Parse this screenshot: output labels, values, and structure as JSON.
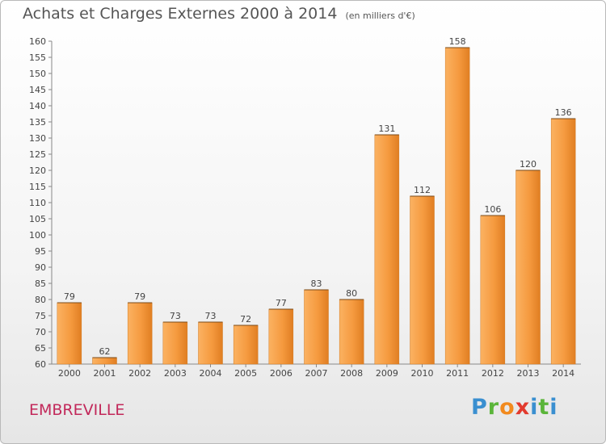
{
  "header": {
    "title": "Achats et Charges Externes 2000 à 2014",
    "subtitle": "(en milliers d'€)"
  },
  "footer": {
    "town": "EMBREVILLE",
    "logo": "Proxiti"
  },
  "colors": {
    "bar_light": "#f9a44c",
    "bar_dark": "#d4731c",
    "title": "#555555",
    "town": "#c2285a"
  },
  "chart_data": {
    "type": "bar",
    "categories": [
      "2000",
      "2001",
      "2002",
      "2003",
      "2004",
      "2005",
      "2006",
      "2007",
      "2008",
      "2009",
      "2010",
      "2011",
      "2012",
      "2013",
      "2014"
    ],
    "values": [
      79,
      62,
      79,
      73,
      73,
      72,
      77,
      83,
      80,
      131,
      112,
      158,
      106,
      120,
      136
    ],
    "ylim": [
      60,
      160
    ],
    "ytick_step": 5,
    "grid": false,
    "data_labels": true
  }
}
